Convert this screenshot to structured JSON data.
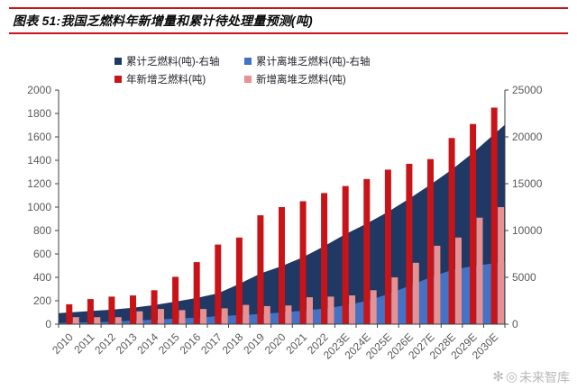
{
  "header": {
    "title": "图表 51:我国乏燃料年新增量和累计待处理量预测(吨)"
  },
  "chart_data": {
    "type": "combo",
    "title": "我国乏燃料年新增量和累计待处理量预测(吨)",
    "categories": [
      "2010",
      "2011",
      "2012",
      "2013",
      "2014",
      "2015",
      "2016",
      "2017",
      "2018",
      "2019",
      "2020",
      "2021",
      "2022",
      "2023E",
      "2024E",
      "2025E",
      "2026E",
      "2027E",
      "2028E",
      "2029E",
      "2030E"
    ],
    "series": [
      {
        "id": "cumulative-spent-fuel",
        "name": "累计乏燃料(吨)-右轴",
        "type": "area",
        "axis": "right",
        "color": "#1f3864",
        "values": [
          1250,
          1400,
          1550,
          1750,
          2050,
          2400,
          2800,
          3300,
          4300,
          5400,
          6200,
          7150,
          8330,
          9620,
          10740,
          12000,
          13400,
          14900,
          16500,
          18300,
          20300
        ]
      },
      {
        "id": "cumulative-offsite-spent-fuel",
        "name": "累计离堆乏燃料(吨)-右轴",
        "type": "area",
        "axis": "right",
        "color": "#4472c4",
        "values": [
          150,
          200,
          270,
          380,
          480,
          600,
          700,
          860,
          960,
          1090,
          1250,
          1440,
          1650,
          2000,
          2500,
          3200,
          4100,
          5000,
          5800,
          6200,
          6500
        ]
      },
      {
        "id": "annual-new-spent-fuel",
        "name": "年新增乏燃料(吨)",
        "type": "bar",
        "axis": "left",
        "color": "#c81418",
        "values": [
          170,
          215,
          235,
          245,
          290,
          405,
          530,
          680,
          740,
          930,
          1000,
          1050,
          1120,
          1180,
          1240,
          1320,
          1370,
          1410,
          1590,
          1710,
          1850
        ]
      },
      {
        "id": "annual-new-offsite-spent-fuel",
        "name": "新增离堆乏燃料(吨)",
        "type": "bar",
        "axis": "left",
        "color": "#e69192",
        "values": [
          60,
          60,
          60,
          110,
          130,
          120,
          130,
          135,
          165,
          155,
          160,
          230,
          235,
          245,
          290,
          400,
          525,
          670,
          740,
          910,
          1000
        ]
      }
    ],
    "left_axis": {
      "min": 0,
      "max": 2000,
      "step": 200
    },
    "right_axis": {
      "min": 0,
      "max": 25000,
      "step": 5000
    },
    "legend_position": "top",
    "grid": false,
    "x_label_rotation": -45
  },
  "watermark": {
    "logo_glyph": "✻",
    "at_glyph": "◎",
    "text": "未来智库"
  },
  "styles": {
    "accent_red": "#c8141a",
    "axis_line_color": "#404040",
    "axis_label_color": "#595959",
    "legend_text_color": "#1f1f28",
    "watermark_color": "#b8b8b8"
  }
}
